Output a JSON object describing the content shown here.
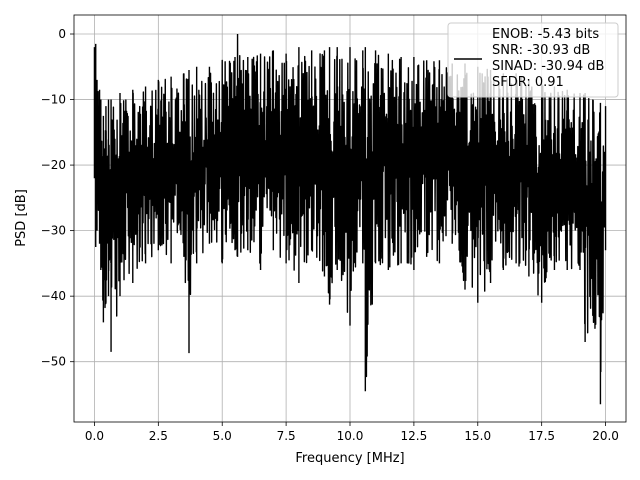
{
  "chart_data": {
    "type": "line",
    "xlabel": "Frequency [MHz]",
    "ylabel": "PSD [dB]",
    "xlim": [
      -0.8,
      20.8
    ],
    "ylim": [
      -59.2,
      2.9
    ],
    "xticks": [
      0.0,
      2.5,
      5.0,
      7.5,
      10.0,
      12.5,
      15.0,
      17.5,
      20.0
    ],
    "xtick_labels": [
      "0.0",
      "2.5",
      "5.0",
      "7.5",
      "10.0",
      "12.5",
      "15.0",
      "17.5",
      "20.0"
    ],
    "yticks": [
      0,
      -10,
      -20,
      -30,
      -40,
      -50
    ],
    "ytick_labels": [
      "0",
      "−10",
      "−20",
      "−30",
      "−40",
      "−50"
    ],
    "grid": true,
    "legend_position": "top-right",
    "series": [
      {
        "color": "#000000",
        "x": [
          0.0,
          0.05,
          0.1,
          0.2,
          0.25,
          0.35,
          0.45,
          0.55,
          0.65,
          1.0,
          1.5,
          2.0,
          2.5,
          3.0,
          3.5,
          3.7,
          4.0,
          4.5,
          5.0,
          5.5,
          5.6,
          6.0,
          6.5,
          7.0,
          7.5,
          8.0,
          8.5,
          9.0,
          9.2,
          9.5,
          10.0,
          10.5,
          10.6,
          11.0,
          11.5,
          12.0,
          12.5,
          13.0,
          13.5,
          14.0,
          14.5,
          15.0,
          15.5,
          16.0,
          16.5,
          17.0,
          17.5,
          18.0,
          18.5,
          19.0,
          19.2,
          19.5,
          19.8,
          20.0
        ],
        "upper": [
          -2.0,
          -1.5,
          -7.0,
          -8.5,
          -10.0,
          -12.5,
          -11.0,
          -10.0,
          -10.0,
          -9.0,
          -8.5,
          -8.0,
          -7.0,
          -6.5,
          -6.0,
          -5.5,
          -5.0,
          -5.0,
          -4.0,
          -3.5,
          0.0,
          -3.5,
          -3.0,
          -2.5,
          -3.0,
          -2.0,
          -2.5,
          -2.5,
          -2.0,
          -2.0,
          -2.0,
          -2.5,
          -2.0,
          -2.5,
          -3.0,
          -3.5,
          -3.5,
          -4.0,
          -4.0,
          -4.5,
          -4.5,
          -5.0,
          -5.5,
          -6.0,
          -6.0,
          -7.0,
          -7.5,
          -8.0,
          -8.5,
          -9.0,
          -9.0,
          -10.0,
          -10.5,
          -11.0
        ],
        "lower": [
          -22.0,
          -32.5,
          -30.0,
          -32.0,
          -36.0,
          -44.0,
          -41.0,
          -40.0,
          -48.5,
          -40.0,
          -38.0,
          -35.0,
          -33.0,
          -35.0,
          -34.0,
          -48.7,
          -35.0,
          -32.0,
          -35.0,
          -33.0,
          -34.0,
          -33.0,
          -36.0,
          -33.0,
          -35.0,
          -38.0,
          -33.0,
          -37.0,
          -41.3,
          -36.0,
          -44.5,
          -35.0,
          -54.5,
          -35.0,
          -36.0,
          -35.0,
          -36.0,
          -34.0,
          -35.0,
          -32.0,
          -39.0,
          -41.0,
          -38.0,
          -36.0,
          -35.0,
          -37.0,
          -41.0,
          -36.0,
          -36.0,
          -36.0,
          -47.0,
          -43.0,
          -56.5,
          -33.0
        ]
      }
    ],
    "legend": {
      "lines": [
        "ENOB: -5.43 bits",
        "SNR: -30.93 dB",
        "SINAD: -30.94 dB",
        "SFDR: 0.91"
      ]
    }
  }
}
